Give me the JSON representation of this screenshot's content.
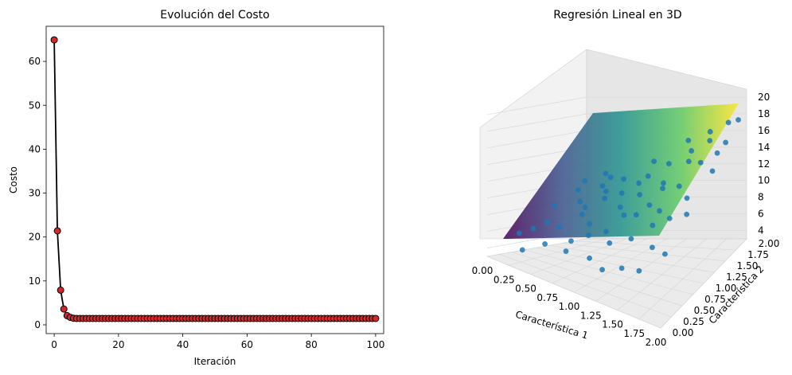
{
  "chart_data": [
    {
      "type": "line",
      "title": "Evolución del Costo",
      "xlabel": "Iteración",
      "ylabel": "Costo",
      "xlim": [
        -2.5,
        102.5
      ],
      "ylim": [
        -2.0,
        68.0
      ],
      "xticks": [
        0,
        20,
        40,
        60,
        80,
        100
      ],
      "yticks": [
        0,
        10,
        20,
        30,
        40,
        50,
        60
      ],
      "grid": false,
      "series": [
        {
          "line_color": "#000000",
          "marker_face": "#d62728",
          "marker_edge": "#000000",
          "x": [
            0,
            1,
            2,
            3,
            4,
            5,
            6,
            7,
            8,
            9,
            10,
            11,
            12,
            13,
            14,
            15,
            16,
            17,
            18,
            19,
            20,
            21,
            22,
            23,
            24,
            25,
            26,
            27,
            28,
            29,
            30,
            31,
            32,
            33,
            34,
            35,
            36,
            37,
            38,
            39,
            40,
            41,
            42,
            43,
            44,
            45,
            46,
            47,
            48,
            49,
            50,
            51,
            52,
            53,
            54,
            55,
            56,
            57,
            58,
            59,
            60,
            61,
            62,
            63,
            64,
            65,
            66,
            67,
            68,
            69,
            70,
            71,
            72,
            73,
            74,
            75,
            76,
            77,
            78,
            79,
            80,
            81,
            82,
            83,
            84,
            85,
            86,
            87,
            88,
            89,
            90,
            91,
            92,
            93,
            94,
            95,
            96,
            97,
            98,
            99,
            100
          ],
          "y": [
            64.9,
            21.4,
            7.9,
            3.6,
            2.1,
            1.7,
            1.5,
            1.45,
            1.45,
            1.45,
            1.45,
            1.45,
            1.45,
            1.45,
            1.45,
            1.45,
            1.45,
            1.45,
            1.45,
            1.45,
            1.45,
            1.45,
            1.45,
            1.45,
            1.45,
            1.45,
            1.45,
            1.45,
            1.45,
            1.45,
            1.45,
            1.45,
            1.45,
            1.45,
            1.45,
            1.45,
            1.45,
            1.45,
            1.45,
            1.45,
            1.45,
            1.45,
            1.45,
            1.45,
            1.45,
            1.45,
            1.45,
            1.45,
            1.45,
            1.45,
            1.45,
            1.45,
            1.45,
            1.45,
            1.45,
            1.45,
            1.45,
            1.45,
            1.45,
            1.45,
            1.45,
            1.45,
            1.45,
            1.45,
            1.45,
            1.45,
            1.45,
            1.45,
            1.45,
            1.45,
            1.45,
            1.45,
            1.45,
            1.45,
            1.45,
            1.45,
            1.45,
            1.45,
            1.45,
            1.45,
            1.45,
            1.45,
            1.45,
            1.45,
            1.45,
            1.45,
            1.45,
            1.45,
            1.45,
            1.45,
            1.45,
            1.45,
            1.45,
            1.45,
            1.45,
            1.45,
            1.45,
            1.45,
            1.45,
            1.45,
            1.45
          ]
        }
      ]
    },
    {
      "type": "scatter",
      "title": "Regresión Lineal en 3D",
      "xlabel": "Característica 1",
      "ylabel": "Característica 2",
      "zlabel": "",
      "xlim": [
        0,
        2
      ],
      "ylim": [
        0,
        2
      ],
      "zlim": [
        3,
        20
      ],
      "xticks": [
        "0.00",
        "0.25",
        "0.50",
        "0.75",
        "1.00",
        "1.25",
        "1.50",
        "1.75",
        "2.00"
      ],
      "yticks": [
        "0.00",
        "0.25",
        "0.50",
        "0.75",
        "1.00",
        "1.25",
        "1.50",
        "1.75",
        "2.00"
      ],
      "zticks": [
        "4",
        "6",
        "8",
        "10",
        "12",
        "14",
        "16",
        "18",
        "20"
      ],
      "grid": true,
      "colormap": "viridis",
      "point_color": "#1f77b4",
      "plane": {
        "z_at_0_0": 4,
        "z_at_2_0": 10.5,
        "z_at_0_2": 13.5,
        "z_at_2_2": 20
      },
      "points": [
        [
          0.2,
          0.3,
          6.2
        ],
        [
          0.35,
          0.1,
          5.1
        ],
        [
          0.5,
          0.6,
          7.4
        ],
        [
          0.8,
          0.2,
          6.5
        ],
        [
          1.1,
          0.15,
          7.0
        ],
        [
          1.3,
          0.05,
          6.8
        ],
        [
          1.5,
          0.1,
          7.6
        ],
        [
          1.7,
          0.1,
          8.1
        ],
        [
          1.2,
          0.4,
          8.3
        ],
        [
          0.9,
          0.5,
          7.9
        ],
        [
          0.6,
          0.9,
          8.5
        ],
        [
          0.4,
          1.2,
          9.0
        ],
        [
          0.2,
          1.5,
          9.6
        ],
        [
          0.1,
          1.8,
          10.2
        ],
        [
          0.3,
          1.9,
          11.0
        ],
        [
          0.7,
          1.6,
          11.2
        ],
        [
          1.0,
          1.4,
          11.6
        ],
        [
          1.4,
          1.2,
          12.3
        ],
        [
          1.8,
          1.0,
          12.8
        ],
        [
          1.9,
          0.8,
          12.1
        ],
        [
          1.6,
          0.6,
          10.9
        ],
        [
          1.3,
          0.8,
          10.5
        ],
        [
          1.0,
          1.0,
          10.0
        ],
        [
          0.7,
          1.2,
          9.9
        ],
        [
          0.5,
          1.5,
          10.4
        ],
        [
          0.9,
          1.9,
          12.6
        ],
        [
          1.2,
          1.7,
          13.1
        ],
        [
          1.5,
          1.6,
          14.0
        ],
        [
          1.7,
          1.5,
          14.5
        ],
        [
          1.95,
          1.3,
          14.8
        ],
        [
          1.9,
          1.7,
          16.1
        ],
        [
          1.8,
          1.95,
          17.2
        ],
        [
          1.6,
          1.9,
          16.3
        ],
        [
          1.3,
          1.95,
          15.0
        ],
        [
          0.5,
          0.3,
          6.0
        ],
        [
          0.8,
          0.7,
          8.4
        ],
        [
          1.1,
          0.9,
          9.6
        ],
        [
          1.4,
          0.5,
          9.1
        ],
        [
          1.7,
          0.4,
          9.5
        ],
        [
          1.9,
          0.3,
          9.9
        ],
        [
          0.3,
          0.7,
          7.2
        ],
        [
          0.6,
          1.4,
          10.1
        ],
        [
          1.0,
          1.6,
          11.8
        ],
        [
          1.3,
          1.4,
          12.0
        ],
        [
          1.6,
          1.2,
          12.9
        ],
        [
          1.85,
          1.6,
          15.3
        ],
        [
          0.15,
          1.1,
          8.2
        ],
        [
          0.45,
          1.75,
          10.9
        ],
        [
          0.75,
          0.4,
          7.0
        ],
        [
          1.05,
          0.6,
          8.5
        ],
        [
          1.35,
          1.0,
          11.0
        ],
        [
          1.55,
          0.85,
          11.4
        ],
        [
          1.75,
          0.7,
          11.7
        ],
        [
          0.25,
          0.5,
          6.6
        ],
        [
          0.55,
          1.05,
          8.9
        ],
        [
          0.85,
          1.3,
          10.5
        ],
        [
          1.15,
          1.15,
          11.3
        ],
        [
          1.45,
          1.75,
          14.6
        ],
        [
          1.65,
          1.8,
          15.7
        ],
        [
          1.95,
          1.9,
          17.8
        ]
      ]
    }
  ]
}
